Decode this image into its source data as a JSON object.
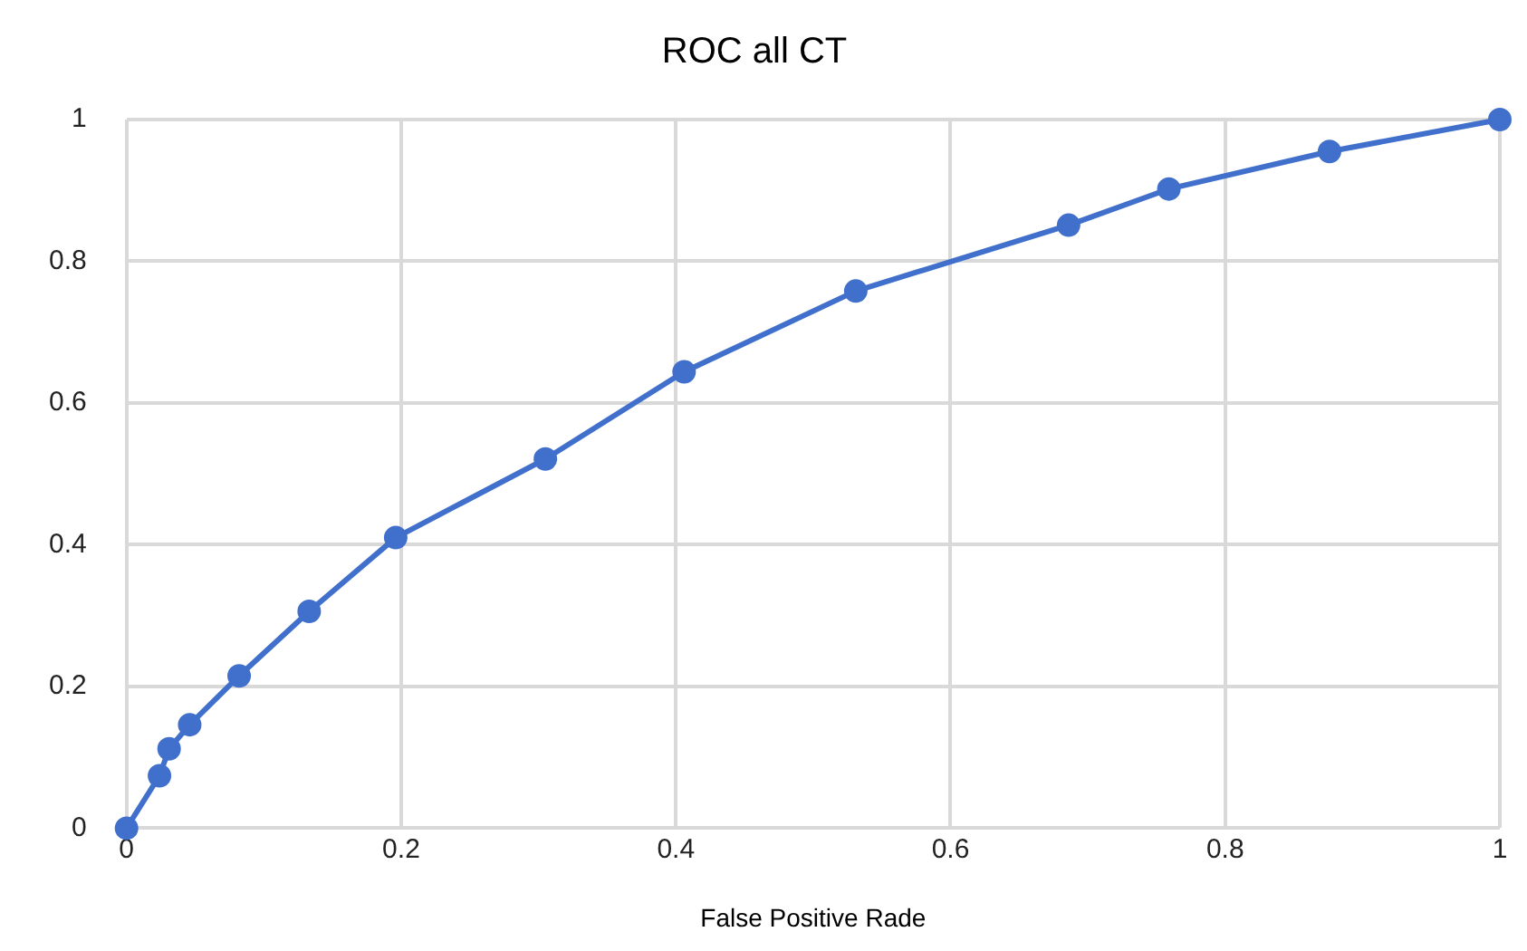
{
  "chart_data": {
    "type": "line",
    "title": "ROC all CT",
    "xlabel": "False Positive Rade",
    "x": [
      0,
      0.024,
      0.031,
      0.046,
      0.082,
      0.133,
      0.196,
      0.305,
      0.406,
      0.531,
      0.686,
      0.759,
      0.876,
      1
    ],
    "series": [
      {
        "color": "#4170cc",
        "values": [
          0,
          0.074,
          0.112,
          0.146,
          0.215,
          0.306,
          0.41,
          0.521,
          0.644,
          0.758,
          0.851,
          0.902,
          0.955,
          1
        ]
      }
    ],
    "xlim": [
      0,
      1
    ],
    "xticks": [
      0,
      0.2,
      0.4,
      0.6,
      0.8,
      1
    ],
    "ylim": [
      0,
      1
    ],
    "yticks": [
      0,
      0.2,
      0.4,
      0.6,
      0.8,
      1
    ],
    "grid": true,
    "legend": false,
    "marker": "circle",
    "line_style": "solid"
  }
}
